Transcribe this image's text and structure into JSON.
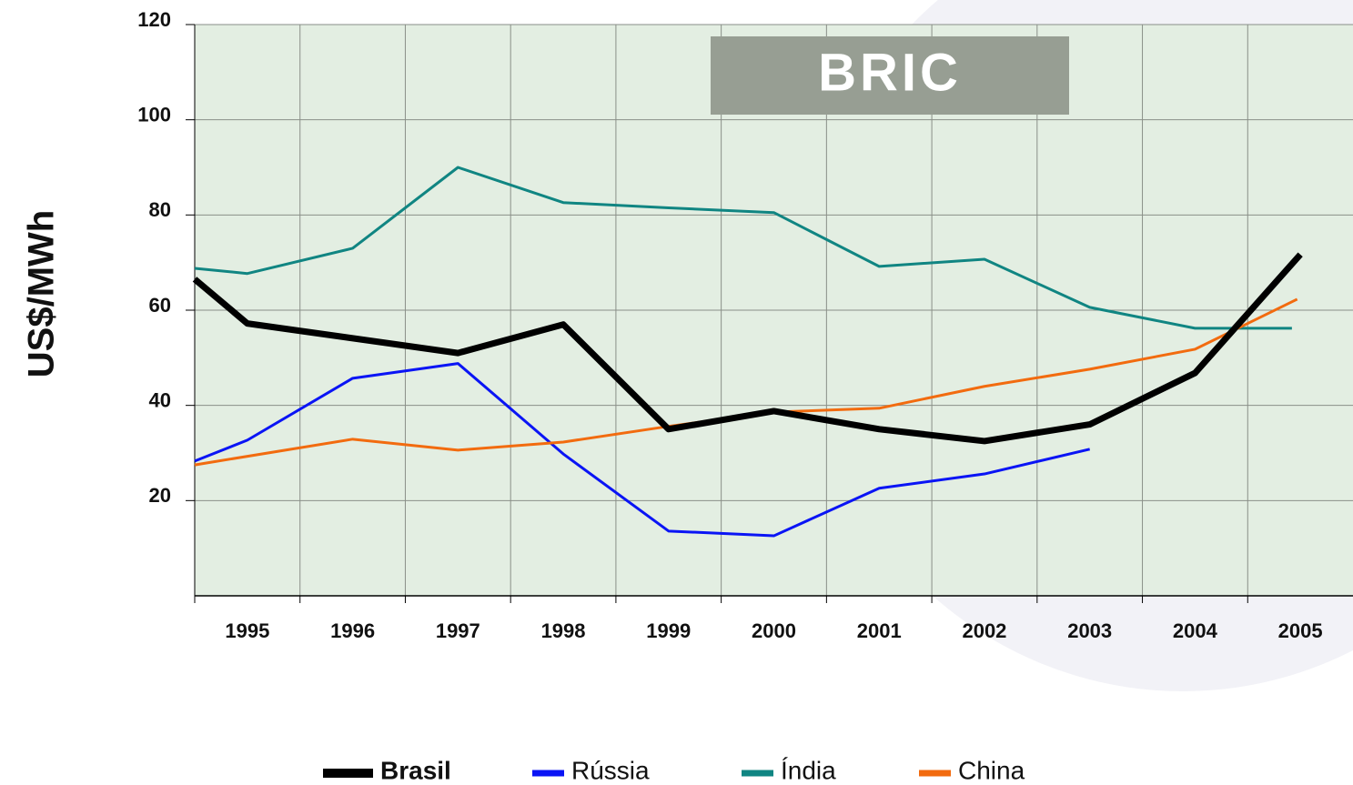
{
  "chart_data": {
    "type": "line",
    "title": "BRIC",
    "y_label": "US$/MWh",
    "xlim": [
      1995,
      2006
    ],
    "xticks": [
      1995,
      1996,
      1997,
      1998,
      1999,
      2000,
      2001,
      2002,
      2003,
      2004,
      2005
    ],
    "ylim": [
      0,
      120
    ],
    "yticks": [
      20,
      40,
      60,
      80,
      100,
      120
    ],
    "grid": true,
    "series": [
      {
        "name": "Brasil",
        "color": "#000000",
        "line_width": 7,
        "x": [
          1995,
          1995.5,
          1997.5,
          1998.5,
          1999.5,
          2000.5,
          2001.5,
          2002.5,
          2003.5,
          2004.5,
          2005.5
        ],
        "values": [
          66.5,
          57.2,
          51,
          57,
          35,
          38.8,
          35,
          32.5,
          36,
          46.8,
          71.7
        ]
      },
      {
        "name": "Rússia",
        "color": "#0a14f5",
        "line_width": 3,
        "x": [
          1995,
          1995.5,
          1996.5,
          1997.5,
          1998.5,
          1999.5,
          2000.5,
          2001.5,
          2002.5,
          2003.5
        ],
        "values": [
          28.3,
          32.7,
          45.7,
          48.8,
          29.8,
          13.6,
          12.6,
          22.6,
          25.6,
          30.8
        ]
      },
      {
        "name": "Índia",
        "color": "#108582",
        "line_width": 3,
        "x": [
          1995,
          1995.5,
          1996.5,
          1997.5,
          1998.5,
          1999.5,
          2000.5,
          2001.5,
          2002.5,
          2003.5,
          2004.5,
          2005.42
        ],
        "values": [
          68.8,
          67.7,
          73,
          90,
          82.6,
          81.5,
          80.5,
          69.2,
          70.7,
          60.6,
          56.2,
          56.2
        ]
      },
      {
        "name": "China",
        "color": "#f26b0f",
        "line_width": 3,
        "x": [
          1995,
          1996.5,
          1997.5,
          1998.5,
          1999.5,
          2000.5,
          2001.5,
          2002.5,
          2003.5,
          2004.5,
          2005.47
        ],
        "values": [
          27.5,
          32.9,
          30.6,
          32.3,
          35.6,
          38.6,
          39.4,
          44,
          47.6,
          51.8,
          62.3
        ]
      }
    ]
  }
}
